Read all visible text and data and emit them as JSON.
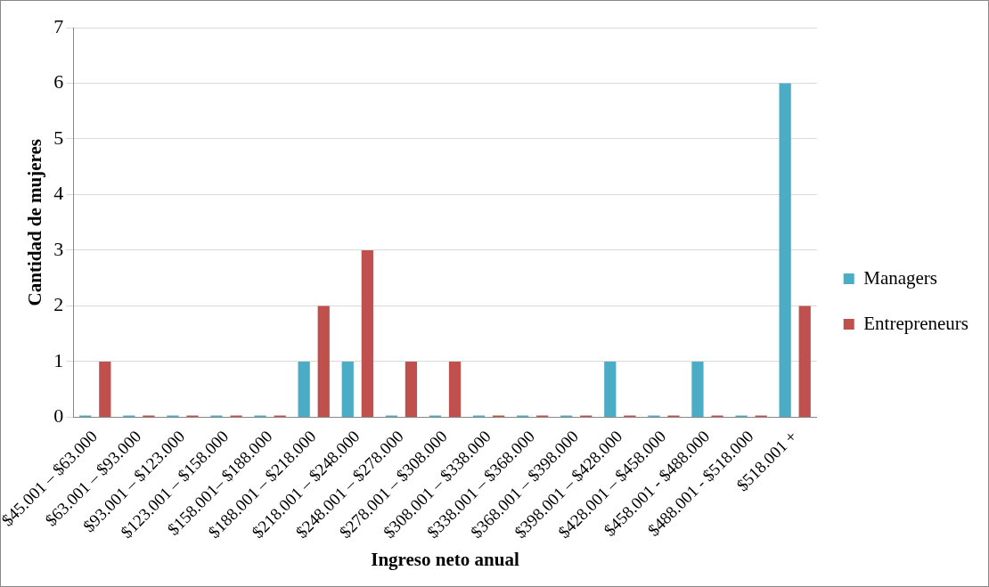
{
  "chart_data": {
    "type": "bar",
    "xlabel": "Ingreso neto anual",
    "ylabel": "Cantidad de mujeres",
    "categories": [
      "$45.001 – $63.000",
      "$63.001 – $93.000",
      "$93.001 – $123.000",
      "$123.001 – $158.000",
      "$158.001– $188.000",
      "$188.001 – $218.000",
      "$218.001 – $248.000",
      "$248.001 – $278.000",
      "$278.001 – $308.000",
      "$308.001 – $338.000",
      "$338.001 – $368.000",
      "$368.001 – $398.000",
      "$398.001 – $428.000",
      "$428.001 – $458.000",
      "$458.001 - $488.000",
      "$488.001 - $518.000",
      "$518.001 +"
    ],
    "series": [
      {
        "name": "Managers",
        "color": "#4bacc6",
        "values": [
          0,
          0,
          0,
          0,
          0,
          1,
          1,
          0,
          0,
          0,
          0,
          0,
          1,
          0,
          1,
          0,
          6
        ]
      },
      {
        "name": "Entrepreneurs",
        "color": "#c0504d",
        "values": [
          1,
          0,
          0,
          0,
          0,
          2,
          3,
          1,
          1,
          0,
          0,
          0,
          0,
          0,
          0,
          0,
          2
        ]
      }
    ],
    "ylim": [
      0,
      7
    ],
    "yticks": [
      0,
      1,
      2,
      3,
      4,
      5,
      6,
      7
    ],
    "grid": "y",
    "legend": "right"
  }
}
